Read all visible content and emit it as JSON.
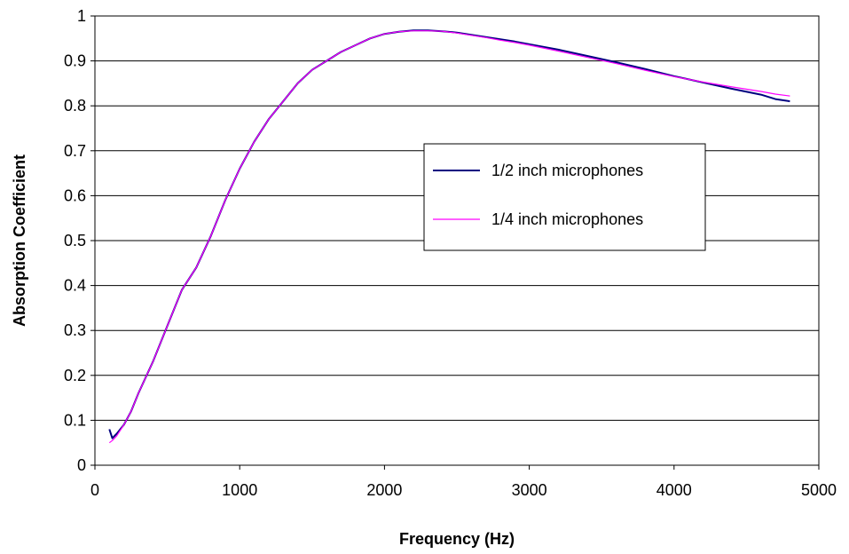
{
  "chart_data": {
    "type": "line",
    "title": "",
    "xlabel": "Frequency (Hz)",
    "ylabel": "Absorption Coefficient",
    "xlim": [
      0,
      5000
    ],
    "ylim": [
      0,
      1
    ],
    "xticks": [
      "0",
      "1000",
      "2000",
      "3000",
      "4000",
      "5000"
    ],
    "yticks": [
      "0",
      "0.1",
      "0.2",
      "0.3",
      "0.4",
      "0.5",
      "0.6",
      "0.7",
      "0.8",
      "0.9",
      "1"
    ],
    "grid": "horizontal",
    "legend_position": "center-right",
    "series": [
      {
        "name": "1/2 inch microphones",
        "color": "#000080",
        "x": [
          100,
          120,
          150,
          200,
          250,
          300,
          400,
          500,
          600,
          700,
          800,
          900,
          1000,
          1100,
          1200,
          1300,
          1400,
          1500,
          1600,
          1700,
          1800,
          1900,
          2000,
          2100,
          2200,
          2300,
          2400,
          2500,
          2600,
          2700,
          2800,
          2900,
          3000,
          3200,
          3400,
          3600,
          3800,
          4000,
          4200,
          4400,
          4600,
          4700,
          4800
        ],
        "y": [
          0.08,
          0.06,
          0.07,
          0.09,
          0.12,
          0.16,
          0.23,
          0.31,
          0.39,
          0.44,
          0.51,
          0.59,
          0.66,
          0.72,
          0.77,
          0.81,
          0.85,
          0.88,
          0.9,
          0.92,
          0.935,
          0.95,
          0.96,
          0.965,
          0.968,
          0.968,
          0.966,
          0.963,
          0.958,
          0.953,
          0.948,
          0.943,
          0.937,
          0.925,
          0.911,
          0.897,
          0.882,
          0.866,
          0.852,
          0.838,
          0.825,
          0.815,
          0.81
        ]
      },
      {
        "name": "1/4 inch microphones",
        "color": "#FF00FF",
        "x": [
          100,
          120,
          150,
          200,
          250,
          300,
          400,
          500,
          600,
          700,
          800,
          900,
          1000,
          1100,
          1200,
          1300,
          1400,
          1500,
          1600,
          1700,
          1800,
          1900,
          2000,
          2100,
          2200,
          2300,
          2400,
          2500,
          2600,
          2700,
          2800,
          2900,
          3000,
          3200,
          3400,
          3600,
          3800,
          4000,
          4200,
          4400,
          4600,
          4700,
          4800
        ],
        "y": [
          0.05,
          0.055,
          0.065,
          0.09,
          0.12,
          0.16,
          0.23,
          0.31,
          0.39,
          0.44,
          0.51,
          0.59,
          0.66,
          0.72,
          0.77,
          0.81,
          0.85,
          0.88,
          0.9,
          0.92,
          0.935,
          0.95,
          0.96,
          0.965,
          0.967,
          0.967,
          0.966,
          0.962,
          0.957,
          0.952,
          0.946,
          0.941,
          0.935,
          0.922,
          0.908,
          0.894,
          0.879,
          0.865,
          0.853,
          0.842,
          0.832,
          0.826,
          0.822
        ]
      }
    ]
  }
}
